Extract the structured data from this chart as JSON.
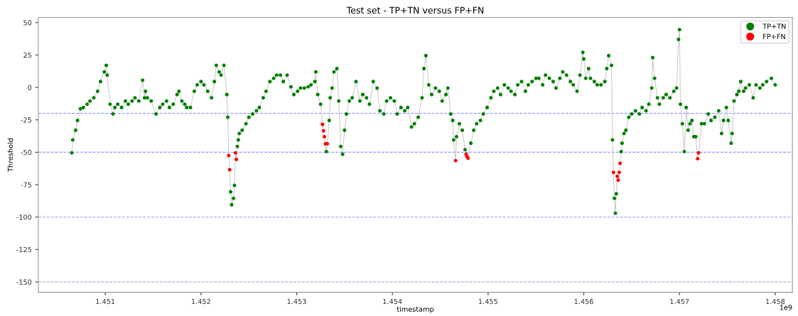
{
  "chart_data": {
    "type": "scatter",
    "title": "Test set - TP+TN versus FP+FN",
    "xlabel": "timestamp",
    "ylabel": "Threshold",
    "xlim": [
      1.4503,
      1.45818
    ],
    "ylim": [
      -158,
      54
    ],
    "xticks": [
      1.451,
      1.452,
      1.453,
      1.454,
      1.455,
      1.456,
      1.457,
      1.458
    ],
    "yticks": [
      -150,
      -125,
      -100,
      -75,
      -50,
      -25,
      0,
      25,
      50
    ],
    "annotations": [
      "1e9"
    ],
    "grid": false,
    "legend": "top right",
    "marker": "circle",
    "ref_lines": [
      {
        "axis": "y",
        "value": -20,
        "color": "#9999ff",
        "line_style": "dashed"
      },
      {
        "axis": "y",
        "value": -50,
        "color": "#9999ff",
        "line_style": "dashed"
      },
      {
        "axis": "y",
        "value": -100,
        "color": "#9999ff",
        "line_style": "dashed"
      },
      {
        "axis": "y",
        "value": -150,
        "color": "#a0a0c8",
        "line_style": "dashed"
      }
    ],
    "series": [
      {
        "type": "line",
        "color": "#cccccc",
        "line_style": "solid",
        "marker": "none",
        "x": [
          1.45065,
          1.45066,
          1.45069,
          1.45071,
          1.45074,
          1.45077,
          1.45081,
          1.45084,
          1.45088,
          1.45092,
          1.45095,
          1.45099,
          1.45101,
          1.45102,
          1.45105,
          1.45108,
          1.4511,
          1.45113,
          1.45117,
          1.45121,
          1.45124,
          1.45128,
          1.45131,
          1.45135,
          1.45139,
          1.45141,
          1.45142,
          1.45144,
          1.45148,
          1.45153,
          1.45157,
          1.4516,
          1.45164,
          1.45167,
          1.45171,
          1.45175,
          1.45177,
          1.4518,
          1.45183,
          1.45185,
          1.45189,
          1.45193,
          1.45196,
          1.452,
          1.45203,
          1.45207,
          1.45211,
          1.45214,
          1.45216,
          1.45219,
          1.45221,
          1.45224,
          1.45227,
          1.45228,
          1.45229,
          1.4523,
          1.45231,
          1.45232,
          1.45234,
          1.45235,
          1.45236,
          1.45237,
          1.45238,
          1.45239,
          1.4524,
          1.45243,
          1.45247,
          1.4525,
          1.45254,
          1.45258,
          1.45261,
          1.45265,
          1.45268,
          1.45272,
          1.45276,
          1.45279,
          1.45283,
          1.45286,
          1.4529,
          1.45294,
          1.45297,
          1.45301,
          1.45304,
          1.45308,
          1.45312,
          1.45315,
          1.45319,
          1.4532,
          1.45322,
          1.45325,
          1.45327,
          1.45328,
          1.45329,
          1.4533,
          1.45331,
          1.45332,
          1.45334,
          1.45335,
          1.45337,
          1.45339,
          1.45342,
          1.45344,
          1.45346,
          1.45348,
          1.4535,
          1.45352,
          1.45355,
          1.45358,
          1.45362,
          1.45366,
          1.45369,
          1.45373,
          1.45376,
          1.4538,
          1.45384,
          1.45387,
          1.45391,
          1.45394,
          1.45398,
          1.45402,
          1.45405,
          1.45409,
          1.45413,
          1.45416,
          1.4542,
          1.45423,
          1.45427,
          1.45431,
          1.45433,
          1.45435,
          1.45438,
          1.45441,
          1.45445,
          1.45449,
          1.45452,
          1.45456,
          1.45458,
          1.45461,
          1.45463,
          1.45464,
          1.45466,
          1.45467,
          1.4547,
          1.45473,
          1.45476,
          1.45477,
          1.45478,
          1.45479,
          1.45482,
          1.45485,
          1.45488,
          1.45492,
          1.45495,
          1.45499,
          1.45503,
          1.45506,
          1.4551,
          1.45513,
          1.45517,
          1.45521,
          1.45524,
          1.45528,
          1.45531,
          1.45535,
          1.45539,
          1.45542,
          1.45546,
          1.4555,
          1.45553,
          1.45557,
          1.4556,
          1.45564,
          1.45568,
          1.45571,
          1.45575,
          1.45578,
          1.45582,
          1.45586,
          1.45589,
          1.45593,
          1.45596,
          1.45599,
          1.456,
          1.45602,
          1.45605,
          1.45607,
          1.45611,
          1.45614,
          1.45618,
          1.45622,
          1.45624,
          1.45626,
          1.45629,
          1.4563,
          1.45631,
          1.45632,
          1.45633,
          1.45634,
          1.45635,
          1.45636,
          1.45637,
          1.45638,
          1.45639,
          1.4564,
          1.45642,
          1.45644,
          1.45647,
          1.4565,
          1.45654,
          1.45658,
          1.45661,
          1.45665,
          1.45668,
          1.45671,
          1.45672,
          1.45674,
          1.45677,
          1.45679,
          1.45683,
          1.45686,
          1.4569,
          1.45694,
          1.45697,
          1.45699,
          1.457,
          1.45701,
          1.45703,
          1.45705,
          1.45707,
          1.45709,
          1.45711,
          1.45713,
          1.45715,
          1.45717,
          1.45719,
          1.4572,
          1.45723,
          1.45726,
          1.4573,
          1.45733,
          1.45737,
          1.45741,
          1.45744,
          1.45746,
          1.45749,
          1.45751,
          1.45754,
          1.45755,
          1.45757,
          1.4576,
          1.45762,
          1.45764,
          1.45767,
          1.45769,
          1.45773,
          1.45777,
          1.4578,
          1.45784,
          1.45787,
          1.45791,
          1.45796,
          1.458
        ],
        "values": [
          -50.5,
          -40.5,
          -33,
          -25.5,
          -16.5,
          -15.5,
          -13,
          -10.5,
          -8,
          -3,
          4.5,
          12,
          17,
          9.5,
          -13,
          -20.5,
          -15.5,
          -13,
          -15.5,
          -10.5,
          -13,
          -10.5,
          -8,
          -10.5,
          5.5,
          -8,
          -3,
          -8,
          -10.5,
          -20.5,
          -15.5,
          -13,
          -10.5,
          -15.5,
          -13,
          -5.5,
          -3,
          -10.5,
          -13,
          -15.5,
          -15.5,
          -3,
          2,
          4.5,
          2,
          -3,
          -8,
          4.5,
          17,
          12,
          9.5,
          17,
          -5.5,
          -23,
          -52.5,
          -63.5,
          -80.5,
          -90.5,
          -85.5,
          -75.5,
          -50.5,
          -55.5,
          -45.5,
          -40.5,
          -35.5,
          -33,
          -28,
          -23,
          -20.5,
          -18,
          -15.5,
          -8,
          -3,
          4.5,
          7,
          9.5,
          9.5,
          4.5,
          9.5,
          0.5,
          -5.5,
          -3,
          -0.5,
          -0.5,
          0.5,
          2,
          4.5,
          12,
          -5.5,
          -13,
          -28.5,
          -33.5,
          -38,
          -43.5,
          -49.5,
          -43.5,
          -25.5,
          -8,
          -0.5,
          12,
          14.5,
          -10.5,
          -45.5,
          -51.5,
          -33,
          -20.5,
          -10.5,
          -8,
          4.5,
          -10.5,
          -5.5,
          -8,
          -13,
          4.5,
          -0.5,
          -18,
          -20.5,
          -10.5,
          -8,
          -10.5,
          -20.5,
          -15.5,
          -18,
          -15.5,
          -30.5,
          -28,
          -23,
          -8,
          14.5,
          24.5,
          2,
          -5.5,
          -0.5,
          -3,
          -10.5,
          -5.5,
          -0.5,
          -20.5,
          -25.5,
          -40.5,
          -56.5,
          -38,
          -28,
          -33,
          -48,
          -51.5,
          -53.5,
          -54.5,
          -43,
          -33,
          -28,
          -25.5,
          -20.5,
          -15.5,
          -8,
          -3,
          -0.5,
          -5.5,
          2,
          -0.5,
          -3,
          -5.5,
          2,
          4.5,
          -3,
          2,
          4.5,
          7,
          7,
          2,
          9.5,
          7,
          4.5,
          -0.5,
          7,
          12,
          9.5,
          4.5,
          2,
          -3,
          9.5,
          27,
          22,
          7,
          14.5,
          7,
          4.5,
          2,
          2,
          4.5,
          14.5,
          24.5,
          17,
          -40.5,
          -65.5,
          -85.5,
          -97,
          -82,
          -68.5,
          -71.5,
          -65.5,
          -58.5,
          -49.5,
          -43,
          -35.5,
          -33,
          -23,
          -20.5,
          -18,
          -20.5,
          -15.5,
          -18,
          -13,
          -0.5,
          23,
          7,
          -8,
          -13,
          -8,
          -5.5,
          -8,
          -3,
          -0.5,
          37,
          44.5,
          -13,
          -28,
          -49.5,
          -15.5,
          -33,
          -28,
          -25.5,
          -38,
          -38,
          -55,
          -50.5,
          -28,
          -28,
          -20.5,
          -25.5,
          -23,
          -18,
          -35.5,
          -25.5,
          -15.5,
          -25.5,
          -43,
          -35.5,
          -10.5,
          -5.5,
          -3,
          4.5,
          -3,
          -0.5,
          2,
          -8,
          2,
          -0.5,
          2,
          4.5,
          7,
          2
        ]
      },
      {
        "name": "TP+TN",
        "color": "#007f00",
        "x": [
          1.45065,
          1.45066,
          1.45069,
          1.45071,
          1.45074,
          1.45077,
          1.45081,
          1.45084,
          1.45088,
          1.45092,
          1.45095,
          1.45099,
          1.45101,
          1.45102,
          1.45105,
          1.45108,
          1.4511,
          1.45113,
          1.45117,
          1.45121,
          1.45124,
          1.45128,
          1.45131,
          1.45135,
          1.45139,
          1.45141,
          1.45142,
          1.45144,
          1.45148,
          1.45153,
          1.45157,
          1.4516,
          1.45164,
          1.45167,
          1.45171,
          1.45175,
          1.45177,
          1.4518,
          1.45183,
          1.45185,
          1.45189,
          1.45193,
          1.45196,
          1.452,
          1.45203,
          1.45207,
          1.45211,
          1.45214,
          1.45216,
          1.45219,
          1.45221,
          1.45224,
          1.45227,
          1.45228,
          1.45231,
          1.45232,
          1.45234,
          1.45235,
          1.45238,
          1.45239,
          1.4524,
          1.45243,
          1.45247,
          1.4525,
          1.45254,
          1.45258,
          1.45261,
          1.45265,
          1.45268,
          1.45272,
          1.45276,
          1.45279,
          1.45283,
          1.45286,
          1.4529,
          1.45294,
          1.45297,
          1.45301,
          1.45304,
          1.45308,
          1.45312,
          1.45315,
          1.45319,
          1.4532,
          1.45322,
          1.45325,
          1.45331,
          1.45334,
          1.45335,
          1.45337,
          1.45339,
          1.45342,
          1.45344,
          1.45346,
          1.45348,
          1.4535,
          1.45352,
          1.45355,
          1.45358,
          1.45362,
          1.45366,
          1.45369,
          1.45373,
          1.45376,
          1.4538,
          1.45384,
          1.45387,
          1.45391,
          1.45394,
          1.45398,
          1.45402,
          1.45405,
          1.45409,
          1.45413,
          1.45416,
          1.4542,
          1.45423,
          1.45427,
          1.45431,
          1.45433,
          1.45435,
          1.45438,
          1.45441,
          1.45445,
          1.45449,
          1.45452,
          1.45456,
          1.45458,
          1.45461,
          1.45463,
          1.45464,
          1.45467,
          1.4547,
          1.45473,
          1.45476,
          1.45482,
          1.45485,
          1.45488,
          1.45492,
          1.45495,
          1.45499,
          1.45503,
          1.45506,
          1.4551,
          1.45513,
          1.45517,
          1.45521,
          1.45524,
          1.45528,
          1.45531,
          1.45535,
          1.45539,
          1.45542,
          1.45546,
          1.4555,
          1.45553,
          1.45557,
          1.4556,
          1.45564,
          1.45568,
          1.45571,
          1.45575,
          1.45578,
          1.45582,
          1.45586,
          1.45589,
          1.45593,
          1.45596,
          1.45599,
          1.456,
          1.45602,
          1.45605,
          1.45607,
          1.45611,
          1.45614,
          1.45618,
          1.45622,
          1.45624,
          1.45626,
          1.45629,
          1.4563,
          1.45632,
          1.45633,
          1.45634,
          1.45639,
          1.4564,
          1.45642,
          1.45644,
          1.45647,
          1.4565,
          1.45654,
          1.45658,
          1.45661,
          1.45665,
          1.45668,
          1.45671,
          1.45672,
          1.45674,
          1.45677,
          1.45679,
          1.45683,
          1.45686,
          1.4569,
          1.45694,
          1.45697,
          1.45699,
          1.457,
          1.45701,
          1.45703,
          1.45705,
          1.45707,
          1.45709,
          1.45711,
          1.45713,
          1.45715,
          1.45717,
          1.45723,
          1.45726,
          1.4573,
          1.45733,
          1.45737,
          1.45741,
          1.45744,
          1.45746,
          1.45749,
          1.45751,
          1.45754,
          1.45755,
          1.45757,
          1.4576,
          1.45762,
          1.45764,
          1.45767,
          1.45769,
          1.45773,
          1.45777,
          1.4578,
          1.45784,
          1.45787,
          1.45791,
          1.45796,
          1.458
        ],
        "values": [
          -50.5,
          -40.5,
          -33,
          -25.5,
          -16.5,
          -15.5,
          -13,
          -10.5,
          -8,
          -3,
          4.5,
          12,
          17,
          9.5,
          -13,
          -20.5,
          -15.5,
          -13,
          -15.5,
          -10.5,
          -13,
          -10.5,
          -8,
          -10.5,
          5.5,
          -8,
          -3,
          -8,
          -10.5,
          -20.5,
          -15.5,
          -13,
          -10.5,
          -15.5,
          -13,
          -5.5,
          -3,
          -10.5,
          -13,
          -15.5,
          -15.5,
          -3,
          2,
          4.5,
          2,
          -3,
          -8,
          4.5,
          17,
          12,
          9.5,
          17,
          -5.5,
          -23,
          -80.5,
          -90.5,
          -85.5,
          -75.5,
          -45.5,
          -40.5,
          -35.5,
          -33,
          -28,
          -23,
          -20.5,
          -18,
          -15.5,
          -8,
          -3,
          4.5,
          7,
          9.5,
          9.5,
          4.5,
          9.5,
          0.5,
          -5.5,
          -3,
          -0.5,
          -0.5,
          0.5,
          2,
          4.5,
          12,
          -5.5,
          -13,
          -49.5,
          -25.5,
          -8,
          -0.5,
          12,
          14.5,
          -10.5,
          -45.5,
          -51.5,
          -33,
          -20.5,
          -10.5,
          -8,
          4.5,
          -10.5,
          -5.5,
          -8,
          -13,
          4.5,
          -0.5,
          -18,
          -20.5,
          -10.5,
          -8,
          -10.5,
          -20.5,
          -15.5,
          -18,
          -15.5,
          -30.5,
          -28,
          -23,
          -8,
          14.5,
          24.5,
          2,
          -5.5,
          -0.5,
          -3,
          -10.5,
          -5.5,
          -0.5,
          -20.5,
          -25.5,
          -40.5,
          -38,
          -28,
          -33,
          -48,
          -43,
          -33,
          -28,
          -25.5,
          -20.5,
          -15.5,
          -8,
          -3,
          -0.5,
          -5.5,
          2,
          -0.5,
          -3,
          -5.5,
          2,
          4.5,
          -3,
          2,
          4.5,
          7,
          7,
          2,
          9.5,
          7,
          4.5,
          -0.5,
          7,
          12,
          9.5,
          4.5,
          2,
          -3,
          9.5,
          27,
          22,
          7,
          14.5,
          7,
          4.5,
          2,
          2,
          4.5,
          14.5,
          24.5,
          17,
          -40.5,
          -85.5,
          -97,
          -82,
          -49.5,
          -43,
          -35.5,
          -33,
          -23,
          -20.5,
          -18,
          -20.5,
          -15.5,
          -18,
          -13,
          -0.5,
          23,
          7,
          -8,
          -13,
          -8,
          -5.5,
          -8,
          -3,
          -0.5,
          37,
          44.5,
          -13,
          -28,
          -49.5,
          -15.5,
          -33,
          -28,
          -25.5,
          -38,
          -38,
          -28,
          -28,
          -20.5,
          -25.5,
          -23,
          -18,
          -35.5,
          -25.5,
          -15.5,
          -25.5,
          -43,
          -35.5,
          -10.5,
          -5.5,
          -3,
          4.5,
          -3,
          -0.5,
          2,
          -8,
          2,
          -0.5,
          2,
          4.5,
          7,
          2
        ]
      },
      {
        "name": "FP+FN",
        "color": "#ff0000",
        "x": [
          1.45229,
          1.4523,
          1.45236,
          1.45237,
          1.45327,
          1.45328,
          1.45329,
          1.4533,
          1.45332,
          1.45466,
          1.45477,
          1.45478,
          1.45479,
          1.45631,
          1.45635,
          1.45636,
          1.45637,
          1.45638,
          1.45719,
          1.4572
        ],
        "values": [
          -52.5,
          -63.5,
          -50.5,
          -55.5,
          -28.5,
          -33.5,
          -38,
          -43.5,
          -43.5,
          -56.5,
          -51.5,
          -53.5,
          -54.5,
          -65.5,
          -68.5,
          -71.5,
          -65.5,
          -58.5,
          -55,
          -50.5
        ]
      }
    ]
  }
}
